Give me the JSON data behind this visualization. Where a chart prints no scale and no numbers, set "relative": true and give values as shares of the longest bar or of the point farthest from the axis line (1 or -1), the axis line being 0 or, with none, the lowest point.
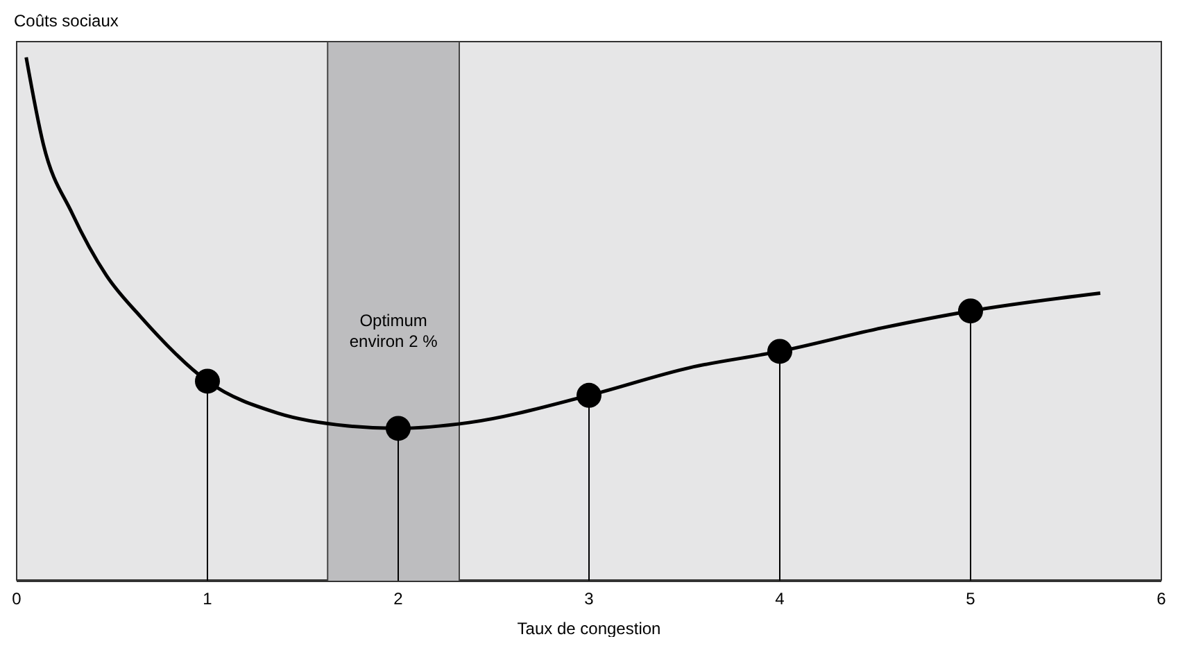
{
  "chart_data": {
    "type": "line",
    "relative": true,
    "ylabel": "Coûts sociaux",
    "xlabel": "Taux de congestion",
    "xlim": [
      0,
      6
    ],
    "xticks": [
      0,
      1,
      2,
      3,
      4,
      5,
      6
    ],
    "series": [
      {
        "color": "#000000",
        "marker": "none",
        "x": [
          0.05,
          0.14,
          0.29,
          0.47,
          0.65,
          1,
          1.37,
          1.73,
          2,
          2.37,
          3,
          3.53,
          4,
          4.54,
          5,
          5.68
        ],
        "values": [
          1,
          0.834,
          0.703,
          0.584,
          0.505,
          0.382,
          0.321,
          0.297,
          0.292,
          0.303,
          0.355,
          0.408,
          0.439,
          0.484,
          0.516,
          0.55
        ]
      },
      {
        "type": "lollipop",
        "color": "#000000",
        "marker": "circle",
        "x": [
          1,
          2,
          3,
          4,
          5
        ],
        "values": [
          0.382,
          0.292,
          0.355,
          0.439,
          0.516
        ]
      }
    ],
    "bands": [
      {
        "axis": "x",
        "from": 1.63,
        "to": 2.32,
        "label": "Optimum environ 2 %",
        "color": "#bdbdbf"
      }
    ]
  }
}
